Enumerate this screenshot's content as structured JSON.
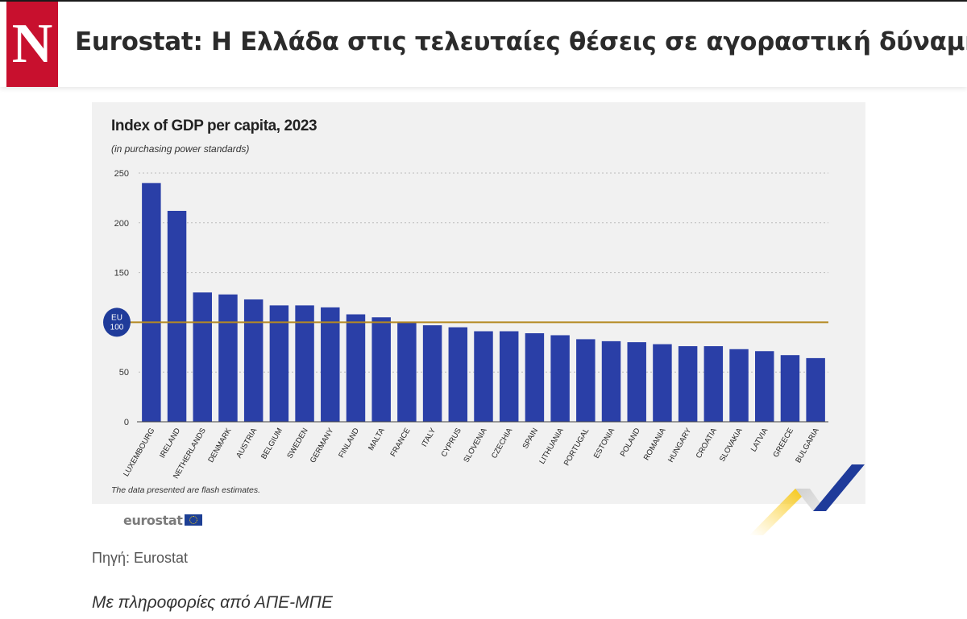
{
  "header": {
    "logo_letter": "N",
    "headline": "Eurostat: Η Ελλάδα στις τελευταίες θέσεις σε αγοραστική δύναμη"
  },
  "chart_note": "The data presented are flash estimates.",
  "eurostat_logo_text": "eurostat",
  "source": "Πηγή: Eurostat",
  "info": "Με πληροφορίες από ΑΠΕ-ΜΠΕ",
  "colors": {
    "bar": "#2a3fa7",
    "eu_line": "#b58a22",
    "eu_badge": "#1f3b9a",
    "gridline": "#bcbcbc"
  },
  "chart_data": {
    "type": "bar",
    "title": "Index of GDP per capita, 2023",
    "subtitle": "(in purchasing power standards)",
    "categories": [
      "LUXEMBOURG",
      "IRELAND",
      "NETHERLANDS",
      "DENMARK",
      "AUSTRIA",
      "BELGIUM",
      "SWEDEN",
      "GERMANY",
      "FINLAND",
      "MALTA",
      "FRANCE",
      "ITALY",
      "CYPRUS",
      "SLOVENIA",
      "CZECHIA",
      "SPAIN",
      "LITHUANIA",
      "PORTUGAL",
      "ESTONIA",
      "POLAND",
      "ROMANIA",
      "HUNGARY",
      "CROATIA",
      "SLOVAKIA",
      "LATVIA",
      "GREECE",
      "BULGARIA"
    ],
    "values": [
      240,
      212,
      130,
      128,
      123,
      117,
      117,
      115,
      108,
      105,
      100,
      97,
      95,
      91,
      91,
      89,
      87,
      83,
      81,
      80,
      78,
      76,
      76,
      73,
      71,
      67,
      64
    ],
    "ylim": [
      0,
      250
    ],
    "yticks": [
      0,
      50,
      100,
      150,
      200,
      250
    ],
    "ytick_labels": [
      "0",
      "50",
      "",
      "150",
      "200",
      "250"
    ],
    "reference_line": {
      "value": 100,
      "label_top": "EU",
      "label_bottom": "100"
    },
    "grid": true
  }
}
